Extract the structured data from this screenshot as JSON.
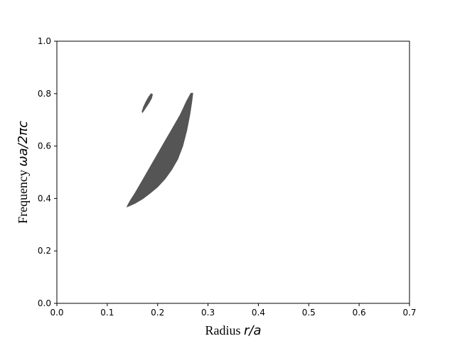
{
  "chart_data": {
    "type": "area",
    "title": "",
    "xlabel": {
      "text": "Radius ",
      "math": "r/a"
    },
    "ylabel": {
      "text": "Frequency ",
      "math": "ωa/2πc"
    },
    "xlim": [
      0.0,
      0.7
    ],
    "ylim": [
      0.0,
      1.0
    ],
    "xticks": [
      "0.0",
      "0.1",
      "0.2",
      "0.3",
      "0.4",
      "0.5",
      "0.6",
      "0.7"
    ],
    "yticks": [
      "0.0",
      "0.2",
      "0.4",
      "0.6",
      "0.8",
      "1.0"
    ],
    "xtick_values": [
      0.0,
      0.1,
      0.2,
      0.3,
      0.4,
      0.5,
      0.6,
      0.7
    ],
    "ytick_values": [
      0.0,
      0.2,
      0.4,
      0.6,
      0.8,
      1.0
    ],
    "grid": false,
    "fill_color": "#555555",
    "regions": [
      {
        "name": "",
        "polygon": [
          [
            0.17,
            0.728
          ],
          [
            0.176,
            0.745
          ],
          [
            0.183,
            0.765
          ],
          [
            0.188,
            0.782
          ],
          [
            0.19,
            0.797
          ],
          [
            0.187,
            0.8
          ],
          [
            0.182,
            0.787
          ],
          [
            0.177,
            0.77
          ],
          [
            0.172,
            0.75
          ],
          [
            0.169,
            0.731
          ]
        ]
      },
      {
        "name": "",
        "polygon": [
          [
            0.141,
            0.369
          ],
          [
            0.155,
            0.381
          ],
          [
            0.17,
            0.398
          ],
          [
            0.185,
            0.42
          ],
          [
            0.2,
            0.444
          ],
          [
            0.215,
            0.475
          ],
          [
            0.228,
            0.51
          ],
          [
            0.24,
            0.55
          ],
          [
            0.25,
            0.6
          ],
          [
            0.258,
            0.66
          ],
          [
            0.264,
            0.72
          ],
          [
            0.268,
            0.77
          ],
          [
            0.27,
            0.802
          ],
          [
            0.266,
            0.802
          ],
          [
            0.257,
            0.77
          ],
          [
            0.245,
            0.72
          ],
          [
            0.23,
            0.67
          ],
          [
            0.215,
            0.62
          ],
          [
            0.2,
            0.57
          ],
          [
            0.185,
            0.52
          ],
          [
            0.17,
            0.47
          ],
          [
            0.155,
            0.42
          ],
          [
            0.145,
            0.39
          ],
          [
            0.14,
            0.372
          ],
          [
            0.139,
            0.368
          ]
        ]
      }
    ]
  }
}
